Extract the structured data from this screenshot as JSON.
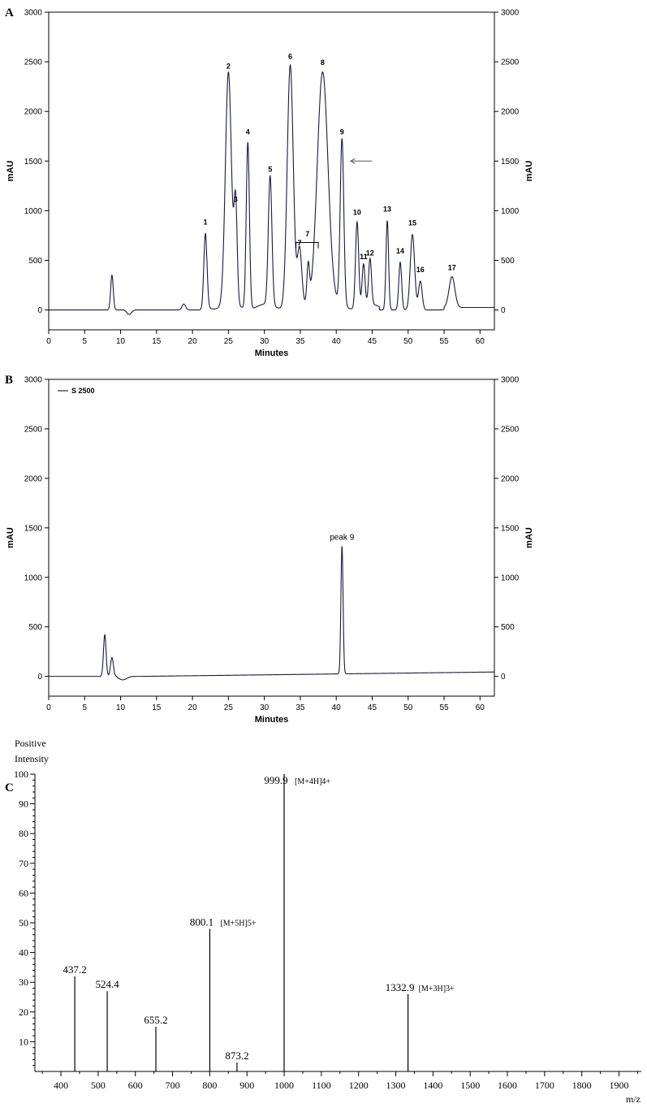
{
  "chart_data": [
    {
      "panel": "A",
      "type": "line",
      "xlabel": "Minutes",
      "ylabel": "mAU",
      "y2label": "mAU",
      "xlim": [
        0,
        62
      ],
      "ylim": [
        -200,
        3000
      ],
      "xticks": [
        0,
        5,
        10,
        15,
        20,
        25,
        30,
        35,
        40,
        45,
        50,
        55,
        60
      ],
      "yticks": [
        0,
        500,
        1000,
        1500,
        2000,
        2500,
        3000
      ],
      "peaks": [
        {
          "x": 8.8,
          "y": 350,
          "w": 0.18
        },
        {
          "x": 18.8,
          "y": 60,
          "w": 0.25
        },
        {
          "label": "1",
          "x": 21.8,
          "y": 770,
          "w": 0.22
        },
        {
          "label": "2",
          "x": 25.0,
          "y": 2340,
          "w": 0.42
        },
        {
          "label": "3",
          "x": 26.0,
          "y": 1000,
          "w": 0.22
        },
        {
          "label": "4",
          "x": 27.7,
          "y": 1680,
          "w": 0.22
        },
        {
          "label": "5",
          "x": 30.8,
          "y": 1300,
          "w": 0.25
        },
        {
          "label": "6",
          "x": 33.6,
          "y": 2440,
          "w": 0.42
        },
        {
          "label": "7",
          "x": 34.9,
          "y": 560,
          "w": 0.3
        },
        {
          "x": 36.1,
          "y": 380,
          "w": 0.18
        },
        {
          "label": "8",
          "x": 38.1,
          "y": 2380,
          "w": 0.75
        },
        {
          "label": "9",
          "x": 40.8,
          "y": 1680,
          "w": 0.25
        },
        {
          "label": "10",
          "x": 42.9,
          "y": 870,
          "w": 0.22
        },
        {
          "label": "11",
          "x": 43.8,
          "y": 420,
          "w": 0.2
        },
        {
          "label": "12",
          "x": 44.7,
          "y": 460,
          "w": 0.2
        },
        {
          "label": "13",
          "x": 47.1,
          "y": 900,
          "w": 0.18
        },
        {
          "label": "14",
          "x": 48.9,
          "y": 480,
          "w": 0.2
        },
        {
          "label": "15",
          "x": 50.6,
          "y": 760,
          "w": 0.3
        },
        {
          "label": "16",
          "x": 51.7,
          "y": 290,
          "w": 0.25
        },
        {
          "label": "17",
          "x": 56.1,
          "y": 310,
          "w": 0.4
        }
      ]
    },
    {
      "panel": "B",
      "type": "line",
      "xlabel": "Minutes",
      "ylabel": "mAU",
      "y2label": "mAU",
      "legend": "S 2500",
      "xlim": [
        0,
        62
      ],
      "ylim": [
        -200,
        3000
      ],
      "xticks": [
        0,
        5,
        10,
        15,
        20,
        25,
        30,
        35,
        40,
        45,
        50,
        55,
        60
      ],
      "yticks": [
        0,
        500,
        1000,
        1500,
        2000,
        2500,
        3000
      ],
      "peaks": [
        {
          "x": 7.8,
          "y": 420,
          "w": 0.18
        },
        {
          "x": 8.8,
          "y": 190,
          "w": 0.2
        },
        {
          "label": "peak 9",
          "x": 40.8,
          "y": 1290,
          "w": 0.15
        }
      ]
    },
    {
      "panel": "C",
      "type": "bar",
      "title": "Positive",
      "ylabel": "Intensity",
      "xlabel": "m/z",
      "xlim": [
        330,
        1960
      ],
      "ylim": [
        0,
        100
      ],
      "xticks": [
        400,
        500,
        600,
        700,
        800,
        900,
        1000,
        1100,
        1200,
        1300,
        1400,
        1500,
        1600,
        1700,
        1800,
        1900
      ],
      "yticks": [
        10,
        20,
        30,
        40,
        50,
        60,
        70,
        80,
        90,
        100
      ],
      "peaks": [
        {
          "mz": 437.2,
          "label": "437.2",
          "intensity": 32,
          "ion": ""
        },
        {
          "mz": 524.4,
          "label": "524.4",
          "intensity": 27,
          "ion": ""
        },
        {
          "mz": 655.2,
          "label": "655.2",
          "intensity": 15,
          "ion": ""
        },
        {
          "mz": 800.1,
          "label": "800.1",
          "intensity": 48,
          "ion": "[M+5H]5+"
        },
        {
          "mz": 873.2,
          "label": "873.2",
          "intensity": 3,
          "ion": ""
        },
        {
          "mz": 999.9,
          "label": "999.9",
          "intensity": 100,
          "ion": "[M+4H]4+"
        },
        {
          "mz": 1332.9,
          "label": "1332.9",
          "intensity": 26,
          "ion": "[M+3H]3+"
        }
      ]
    }
  ],
  "annotations": {
    "panel_a_bracket_label": "7"
  }
}
